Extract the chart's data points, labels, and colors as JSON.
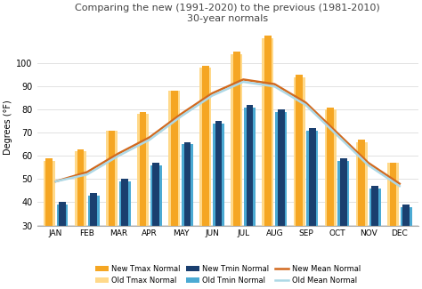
{
  "months": [
    "JAN",
    "FEB",
    "MAR",
    "APR",
    "MAY",
    "JUN",
    "JUL",
    "AUG",
    "SEP",
    "OCT",
    "NOV",
    "DEC"
  ],
  "new_tmax": [
    59,
    63,
    71,
    79,
    88,
    99,
    105,
    112,
    95,
    81,
    67,
    57
  ],
  "old_tmax": [
    58,
    62,
    71,
    78,
    88,
    98,
    104,
    111,
    94,
    80,
    66,
    57
  ],
  "new_tmin": [
    40,
    44,
    50,
    57,
    66,
    75,
    82,
    80,
    72,
    59,
    47,
    39
  ],
  "old_tmin": [
    39,
    43,
    49,
    56,
    65,
    74,
    81,
    79,
    71,
    58,
    46,
    38
  ],
  "new_mean": [
    49,
    53,
    61,
    68,
    78,
    87,
    93,
    91,
    83,
    70,
    57,
    48
  ],
  "old_mean": [
    49,
    52,
    60,
    67,
    77,
    86,
    92,
    90,
    82,
    69,
    56,
    47
  ],
  "bar_color_new_tmax": "#F5A623",
  "bar_color_old_tmax": "#FFD98A",
  "bar_color_new_tmin": "#1A3F6F",
  "bar_color_old_tmin": "#4BAAD3",
  "line_color_new_mean": "#D2691E",
  "line_color_old_mean": "#ADD8E6",
  "title_line1": "Comparing the new (1991-2020) to the previous (1981-2010)",
  "title_line2": "30-year normals",
  "ylabel": "Degrees (°F)",
  "ylim_min": 30,
  "ylim_max": 115,
  "yticks": [
    30,
    40,
    50,
    60,
    70,
    80,
    90,
    100
  ],
  "background_color": "#ffffff",
  "legend_labels": [
    "New Tmax Normal",
    "Old Tmax Normal",
    "New Tmin Normal",
    "Old Tmin Normal",
    "New Mean Normal",
    "Old Mean Normal"
  ]
}
